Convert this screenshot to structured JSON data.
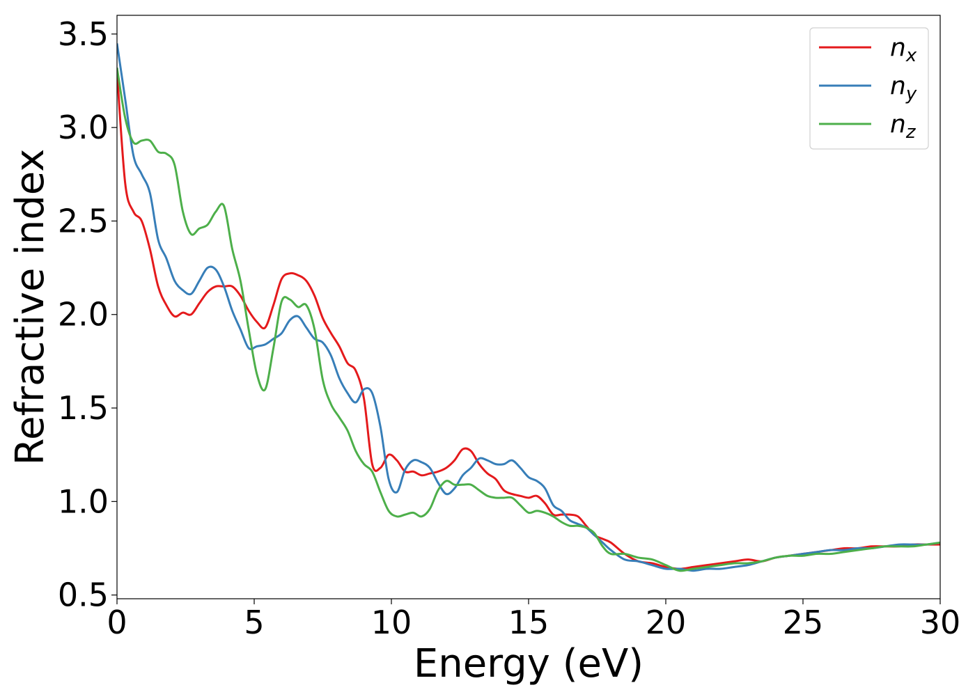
{
  "chart_data": {
    "type": "line",
    "xlabel": "Energy (eV)",
    "ylabel": "Refractive index",
    "xlim": [
      0,
      30
    ],
    "ylim": [
      0.48,
      3.6
    ],
    "xticks": [
      0,
      5,
      10,
      15,
      20,
      25,
      30
    ],
    "xtick_labels": [
      "0",
      "5",
      "10",
      "15",
      "20",
      "25",
      "30"
    ],
    "yticks": [
      0.5,
      1.0,
      1.5,
      2.0,
      2.5,
      3.0,
      3.5
    ],
    "ytick_labels": [
      "0.5",
      "1.0",
      "1.5",
      "2.0",
      "2.5",
      "3.0",
      "3.5"
    ],
    "grid": false,
    "legend_position": "top-right",
    "series": [
      {
        "name": "n",
        "subscript": "x",
        "color": "#e41a1c",
        "x": [
          0,
          0.3,
          0.6,
          0.9,
          1.2,
          1.5,
          1.8,
          2.1,
          2.4,
          2.7,
          3.0,
          3.3,
          3.6,
          3.9,
          4.2,
          4.5,
          4.8,
          5.1,
          5.4,
          5.7,
          6.0,
          6.3,
          6.6,
          6.9,
          7.2,
          7.5,
          7.8,
          8.1,
          8.4,
          8.7,
          9.0,
          9.3,
          9.6,
          9.9,
          10.2,
          10.5,
          10.8,
          11.1,
          11.4,
          11.7,
          12.0,
          12.3,
          12.6,
          12.9,
          13.2,
          13.5,
          13.8,
          14.1,
          14.4,
          14.7,
          15.0,
          15.3,
          15.6,
          15.9,
          16.2,
          16.5,
          16.8,
          17.1,
          17.4,
          17.7,
          18.0,
          18.5,
          19.0,
          19.5,
          20.0,
          20.5,
          21.0,
          21.5,
          22.0,
          22.5,
          23.0,
          23.5,
          24.0,
          24.5,
          25.0,
          25.5,
          26.0,
          26.5,
          27.0,
          27.5,
          28.0,
          28.5,
          29.0,
          29.5,
          30.0
        ],
        "y": [
          3.3,
          2.7,
          2.55,
          2.5,
          2.35,
          2.15,
          2.05,
          1.99,
          2.01,
          2.0,
          2.06,
          2.12,
          2.15,
          2.15,
          2.15,
          2.1,
          2.02,
          1.96,
          1.93,
          2.05,
          2.19,
          2.22,
          2.21,
          2.18,
          2.1,
          1.98,
          1.9,
          1.83,
          1.74,
          1.7,
          1.55,
          1.2,
          1.18,
          1.25,
          1.22,
          1.16,
          1.16,
          1.14,
          1.15,
          1.16,
          1.18,
          1.22,
          1.28,
          1.27,
          1.2,
          1.15,
          1.12,
          1.06,
          1.04,
          1.03,
          1.02,
          1.03,
          0.99,
          0.93,
          0.93,
          0.93,
          0.92,
          0.87,
          0.82,
          0.8,
          0.78,
          0.72,
          0.68,
          0.67,
          0.65,
          0.64,
          0.65,
          0.66,
          0.67,
          0.68,
          0.69,
          0.68,
          0.7,
          0.71,
          0.72,
          0.73,
          0.74,
          0.75,
          0.75,
          0.76,
          0.76,
          0.76,
          0.77,
          0.77,
          0.77
        ]
      },
      {
        "name": "n",
        "subscript": "y",
        "color": "#377eb8",
        "x": [
          0,
          0.3,
          0.6,
          0.9,
          1.2,
          1.5,
          1.8,
          2.1,
          2.4,
          2.7,
          3.0,
          3.3,
          3.6,
          3.9,
          4.2,
          4.5,
          4.8,
          5.1,
          5.4,
          5.7,
          6.0,
          6.3,
          6.6,
          6.9,
          7.2,
          7.5,
          7.8,
          8.1,
          8.4,
          8.7,
          9.0,
          9.3,
          9.6,
          9.9,
          10.2,
          10.5,
          10.8,
          11.1,
          11.4,
          11.7,
          12.0,
          12.3,
          12.6,
          12.9,
          13.2,
          13.5,
          13.8,
          14.1,
          14.4,
          14.7,
          15.0,
          15.3,
          15.6,
          15.9,
          16.2,
          16.5,
          16.8,
          17.1,
          17.4,
          17.7,
          18.0,
          18.5,
          19.0,
          19.5,
          20.0,
          20.5,
          21.0,
          21.5,
          22.0,
          22.5,
          23.0,
          23.5,
          24.0,
          24.5,
          25.0,
          25.5,
          26.0,
          26.5,
          27.0,
          27.5,
          28.0,
          28.5,
          29.0,
          29.5,
          30.0
        ],
        "y": [
          3.45,
          3.15,
          2.85,
          2.75,
          2.65,
          2.4,
          2.3,
          2.18,
          2.13,
          2.11,
          2.18,
          2.25,
          2.24,
          2.15,
          2.02,
          1.92,
          1.82,
          1.83,
          1.84,
          1.87,
          1.9,
          1.97,
          1.99,
          1.93,
          1.87,
          1.85,
          1.78,
          1.66,
          1.58,
          1.53,
          1.6,
          1.58,
          1.4,
          1.12,
          1.05,
          1.17,
          1.22,
          1.21,
          1.18,
          1.1,
          1.04,
          1.07,
          1.14,
          1.18,
          1.23,
          1.22,
          1.2,
          1.2,
          1.22,
          1.18,
          1.13,
          1.11,
          1.07,
          0.98,
          0.95,
          0.9,
          0.88,
          0.86,
          0.82,
          0.78,
          0.74,
          0.69,
          0.68,
          0.66,
          0.64,
          0.64,
          0.63,
          0.64,
          0.64,
          0.65,
          0.66,
          0.68,
          0.7,
          0.71,
          0.72,
          0.73,
          0.74,
          0.74,
          0.75,
          0.75,
          0.76,
          0.77,
          0.77,
          0.77,
          0.78
        ]
      },
      {
        "name": "n",
        "subscript": "z",
        "color": "#4daf4a",
        "x": [
          0,
          0.3,
          0.6,
          0.9,
          1.2,
          1.5,
          1.8,
          2.1,
          2.4,
          2.7,
          3.0,
          3.3,
          3.6,
          3.9,
          4.2,
          4.5,
          4.8,
          5.1,
          5.4,
          5.7,
          6.0,
          6.3,
          6.6,
          6.9,
          7.2,
          7.5,
          7.8,
          8.1,
          8.4,
          8.7,
          9.0,
          9.3,
          9.6,
          9.9,
          10.2,
          10.5,
          10.8,
          11.1,
          11.4,
          11.7,
          12.0,
          12.3,
          12.6,
          12.9,
          13.2,
          13.5,
          13.8,
          14.1,
          14.4,
          14.7,
          15.0,
          15.3,
          15.6,
          15.9,
          16.2,
          16.5,
          16.8,
          17.1,
          17.4,
          17.7,
          18.0,
          18.5,
          19.0,
          19.5,
          20.0,
          20.5,
          21.0,
          21.5,
          22.0,
          22.5,
          23.0,
          23.5,
          24.0,
          24.5,
          25.0,
          25.5,
          26.0,
          26.5,
          27.0,
          27.5,
          28.0,
          28.5,
          29.0,
          29.5,
          30.0
        ],
        "y": [
          3.32,
          3.05,
          2.92,
          2.93,
          2.93,
          2.87,
          2.86,
          2.8,
          2.55,
          2.43,
          2.46,
          2.48,
          2.55,
          2.58,
          2.35,
          2.18,
          1.92,
          1.68,
          1.6,
          1.82,
          2.07,
          2.08,
          2.04,
          2.05,
          1.92,
          1.65,
          1.52,
          1.45,
          1.38,
          1.27,
          1.2,
          1.16,
          1.05,
          0.95,
          0.92,
          0.93,
          0.94,
          0.92,
          0.96,
          1.06,
          1.11,
          1.09,
          1.09,
          1.09,
          1.06,
          1.03,
          1.02,
          1.02,
          1.02,
          0.98,
          0.94,
          0.95,
          0.94,
          0.92,
          0.89,
          0.87,
          0.87,
          0.86,
          0.83,
          0.76,
          0.72,
          0.72,
          0.7,
          0.69,
          0.66,
          0.63,
          0.64,
          0.65,
          0.66,
          0.67,
          0.67,
          0.68,
          0.7,
          0.71,
          0.71,
          0.72,
          0.72,
          0.73,
          0.74,
          0.75,
          0.76,
          0.76,
          0.76,
          0.77,
          0.78
        ]
      }
    ]
  }
}
